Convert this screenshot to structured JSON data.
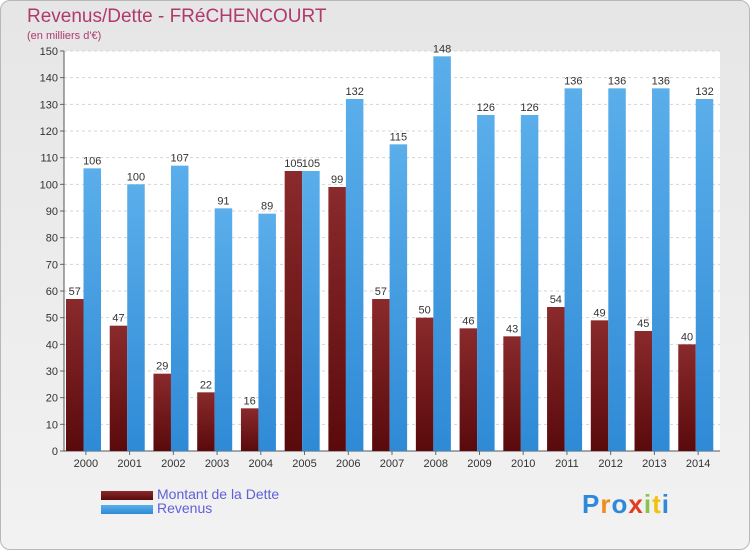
{
  "chart_data": {
    "type": "bar",
    "title": "Revenus/Dette - FRéCHENCOURT",
    "subtitle": "(en milliers d'€)",
    "categories": [
      "2000",
      "2001",
      "2002",
      "2003",
      "2004",
      "2005",
      "2006",
      "2007",
      "2008",
      "2009",
      "2010",
      "2011",
      "2012",
      "2013",
      "2014"
    ],
    "series": [
      {
        "name": "Montant de la Dette",
        "color": "#7b1416",
        "values": [
          57,
          47,
          29,
          22,
          16,
          105,
          99,
          57,
          50,
          46,
          43,
          54,
          49,
          45,
          40
        ]
      },
      {
        "name": "Revenus",
        "color": "#3d9ae0",
        "values": [
          106,
          100,
          107,
          91,
          89,
          105,
          132,
          115,
          148,
          126,
          126,
          136,
          136,
          136,
          132
        ]
      }
    ],
    "ylim": [
      0,
      150
    ],
    "yticks": [
      0,
      10,
      20,
      30,
      40,
      50,
      60,
      70,
      80,
      90,
      100,
      110,
      120,
      130,
      140,
      150
    ],
    "grid": true,
    "legend_position": "bottom-left"
  },
  "logo": {
    "text": "Proxiti",
    "letters": [
      "P",
      "r",
      "o",
      "x",
      "i",
      "t",
      "i"
    ],
    "colors": [
      "#2f88d8",
      "#f08c1c",
      "#2f88d8",
      "#e23c20",
      "#8bc34a",
      "#f0c20c",
      "#2f88d8"
    ]
  }
}
